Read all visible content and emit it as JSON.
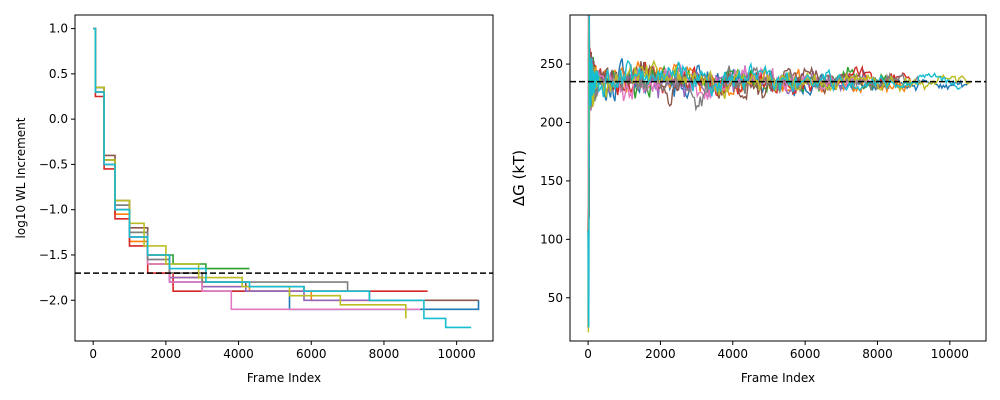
{
  "chart_data": [
    {
      "type": "line",
      "title": "",
      "xlabel": "Frame Index",
      "ylabel": "log10 WL Increment",
      "xlim": [
        -500,
        11000
      ],
      "ylim": [
        -2.45,
        1.15
      ],
      "xticks": [
        "0",
        "2000",
        "4000",
        "6000",
        "8000",
        "10000"
      ],
      "xtick_values": [
        0,
        2000,
        4000,
        6000,
        8000,
        10000
      ],
      "yticks": [
        "1.0",
        "0.5",
        "0.0",
        "−0.5",
        "−1.0",
        "−1.5",
        "−2.0"
      ],
      "ytick_values": [
        1.0,
        0.5,
        0.0,
        -0.5,
        -1.0,
        -1.5,
        -2.0
      ],
      "reference_line": {
        "y": -1.7,
        "style": "dashed",
        "color": "#000000"
      },
      "grid": false,
      "series": [
        {
          "color": "#1f77b4",
          "x": [
            0,
            60,
            300,
            600,
            1000,
            1500,
            2100,
            3000,
            4100,
            5400,
            6400,
            8100,
            10600
          ],
          "y": [
            1.0,
            0.35,
            -0.5,
            -1.0,
            -1.3,
            -1.6,
            -1.8,
            -1.9,
            -1.9,
            -2.1,
            -2.1,
            -2.1,
            -2.0
          ]
        },
        {
          "color": "#ff7f0e",
          "x": [
            0,
            60,
            300,
            600,
            1000,
            1500,
            2100,
            3000,
            4300,
            6000,
            8400
          ],
          "y": [
            1.0,
            0.3,
            -0.5,
            -1.05,
            -1.35,
            -1.6,
            -1.75,
            -1.85,
            -1.9,
            -2.0,
            -2.0
          ]
        },
        {
          "color": "#2ca02c",
          "x": [
            0,
            60,
            300,
            600,
            1000,
            1500,
            2200,
            3100,
            4300
          ],
          "y": [
            1.0,
            0.3,
            -0.45,
            -0.95,
            -1.25,
            -1.5,
            -1.6,
            -1.65,
            -1.65
          ]
        },
        {
          "color": "#d62728",
          "x": [
            0,
            60,
            300,
            600,
            1000,
            1500,
            2200,
            3300,
            5000,
            7400,
            9200
          ],
          "y": [
            1.0,
            0.25,
            -0.55,
            -1.1,
            -1.4,
            -1.7,
            -1.9,
            -1.9,
            -1.9,
            -1.9,
            -1.9
          ]
        },
        {
          "color": "#9467bd",
          "x": [
            0,
            60,
            300,
            600,
            1000,
            1500,
            2100,
            3000,
            4200,
            5800,
            7600,
            9000
          ],
          "y": [
            1.0,
            0.3,
            -0.5,
            -1.0,
            -1.3,
            -1.55,
            -1.75,
            -1.85,
            -1.9,
            -2.0,
            -2.0,
            -2.0
          ]
        },
        {
          "color": "#8c564b",
          "x": [
            0,
            60,
            300,
            600,
            1000,
            1500,
            2100,
            3000,
            4200,
            5800,
            7600,
            10600
          ],
          "y": [
            1.0,
            0.35,
            -0.4,
            -0.9,
            -1.2,
            -1.5,
            -1.7,
            -1.8,
            -1.85,
            -1.9,
            -2.0,
            -2.0
          ]
        },
        {
          "color": "#e377c2",
          "x": [
            0,
            60,
            300,
            600,
            1000,
            1500,
            2100,
            3000,
            3800,
            5400,
            7200,
            9000
          ],
          "y": [
            1.0,
            0.3,
            -0.5,
            -1.0,
            -1.3,
            -1.6,
            -1.8,
            -1.9,
            -2.1,
            -2.1,
            -2.1,
            -2.1
          ]
        },
        {
          "color": "#7f7f7f",
          "x": [
            0,
            60,
            300,
            600,
            1000,
            1500,
            2100,
            3000,
            4200,
            6800,
            7000
          ],
          "y": [
            1.0,
            0.3,
            -0.45,
            -0.95,
            -1.25,
            -1.55,
            -1.7,
            -1.8,
            -1.8,
            -1.8,
            -1.9
          ]
        },
        {
          "color": "#bcbd22",
          "x": [
            0,
            60,
            300,
            600,
            1000,
            1400,
            2000,
            2900,
            4100,
            5400,
            6800,
            8600
          ],
          "y": [
            1.0,
            0.35,
            -0.45,
            -0.9,
            -1.15,
            -1.4,
            -1.6,
            -1.75,
            -1.85,
            -1.95,
            -2.05,
            -2.2
          ]
        },
        {
          "color": "#17becf",
          "x": [
            0,
            60,
            300,
            600,
            1000,
            1500,
            2100,
            3100,
            4300,
            5800,
            7600,
            9100,
            9700,
            10400
          ],
          "y": [
            1.0,
            0.3,
            -0.5,
            -1.0,
            -1.3,
            -1.5,
            -1.65,
            -1.8,
            -1.85,
            -1.9,
            -2.0,
            -2.2,
            -2.3,
            -2.3
          ]
        }
      ]
    },
    {
      "type": "line",
      "title": "",
      "xlabel": "Frame Index",
      "ylabel": "ΔG (kT)",
      "xlim": [
        -500,
        11000
      ],
      "ylim": [
        13,
        292
      ],
      "xticks": [
        "0",
        "2000",
        "4000",
        "6000",
        "8000",
        "10000"
      ],
      "xtick_values": [
        0,
        2000,
        4000,
        6000,
        8000,
        10000
      ],
      "yticks": [
        "50",
        "100",
        "150",
        "200",
        "250"
      ],
      "ytick_values": [
        50,
        100,
        150,
        200,
        250
      ],
      "reference_line": {
        "y": 235,
        "style": "dashed",
        "color": "#000000"
      },
      "grid": false,
      "initial_spike": {
        "min": 20,
        "max": 280
      },
      "settled_band": {
        "center": 235,
        "early_amplitude": 22,
        "late_amplitude": 6
      },
      "series": [
        {
          "color": "#1f77b4",
          "end_x": 10500
        },
        {
          "color": "#ff7f0e",
          "end_x": 9000
        },
        {
          "color": "#2ca02c",
          "end_x": 8500
        },
        {
          "color": "#d62728",
          "end_x": 9000
        },
        {
          "color": "#9467bd",
          "end_x": 7500
        },
        {
          "color": "#8c564b",
          "end_x": 8200
        },
        {
          "color": "#e377c2",
          "end_x": 7800
        },
        {
          "color": "#7f7f7f",
          "end_x": 9200
        },
        {
          "color": "#bcbd22",
          "end_x": 10600
        },
        {
          "color": "#17becf",
          "end_x": 10300
        }
      ]
    }
  ]
}
